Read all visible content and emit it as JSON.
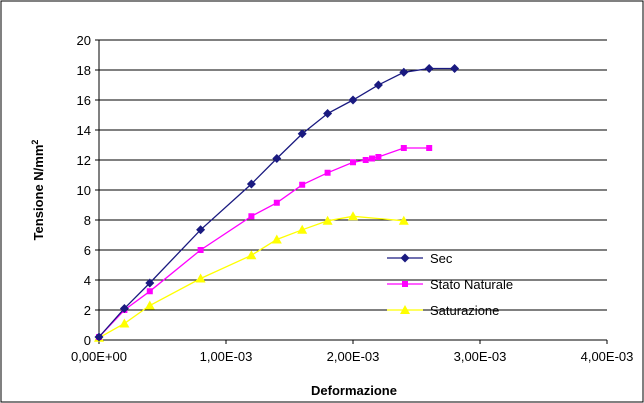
{
  "chart_data": {
    "type": "line",
    "xlabel": "Deformazione",
    "ylabel": "Tensione N/mm",
    "ylabel_sup": "2",
    "xlim": [
      0,
      0.004
    ],
    "ylim": [
      0,
      20
    ],
    "x_ticks": [
      "0,00E+00",
      "1,00E-03",
      "2,00E-03",
      "3,00E-03",
      "4,00E-03"
    ],
    "y_ticks": [
      "0",
      "2",
      "4",
      "6",
      "8",
      "10",
      "12",
      "14",
      "16",
      "18",
      "20"
    ],
    "grid": "horizontal",
    "legend_position": "bottom-right",
    "series": [
      {
        "name": "Sec",
        "color": "#1a1a80",
        "marker": "diamond",
        "points": [
          [
            0.0,
            0.2
          ],
          [
            0.0002,
            2.1
          ],
          [
            0.0004,
            3.8
          ],
          [
            0.0008,
            7.35
          ],
          [
            0.0012,
            10.4
          ],
          [
            0.0014,
            12.1
          ],
          [
            0.0016,
            13.75
          ],
          [
            0.0018,
            15.1
          ],
          [
            0.002,
            16.0
          ],
          [
            0.0022,
            17.0
          ],
          [
            0.0024,
            17.85
          ],
          [
            0.0026,
            18.1
          ],
          [
            0.0028,
            18.1
          ]
        ]
      },
      {
        "name": "Stato Naturale",
        "color": "#ff00ff",
        "marker": "square",
        "points": [
          [
            0.0,
            0.2
          ],
          [
            0.0002,
            2.0
          ],
          [
            0.0004,
            3.25
          ],
          [
            0.0008,
            6.0
          ],
          [
            0.0012,
            8.25
          ],
          [
            0.0014,
            9.15
          ],
          [
            0.0016,
            10.35
          ],
          [
            0.0018,
            11.15
          ],
          [
            0.002,
            11.85
          ],
          [
            0.0021,
            12.0
          ],
          [
            0.00215,
            12.1
          ],
          [
            0.0022,
            12.2
          ],
          [
            0.0024,
            12.8
          ],
          [
            0.0026,
            12.8
          ]
        ]
      },
      {
        "name": "Saturazione",
        "color": "#ffff00",
        "marker": "triangle",
        "points": [
          [
            0.0,
            0.15
          ],
          [
            0.0002,
            1.1
          ],
          [
            0.0004,
            2.3
          ],
          [
            0.0008,
            4.1
          ],
          [
            0.0012,
            5.65
          ],
          [
            0.0014,
            6.7
          ],
          [
            0.0016,
            7.35
          ],
          [
            0.0018,
            7.95
          ],
          [
            0.002,
            8.25
          ],
          [
            0.0024,
            7.95
          ]
        ]
      }
    ]
  }
}
